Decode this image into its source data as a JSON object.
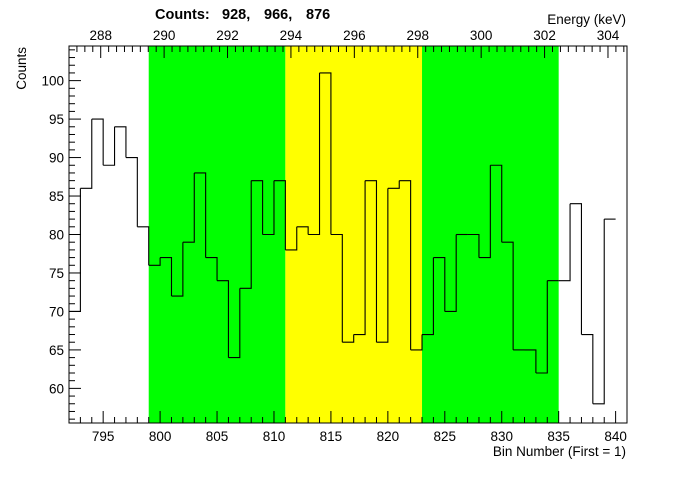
{
  "chart_data": {
    "type": "histogram",
    "counts_label": "Counts:",
    "counts_values": [
      "928,",
      "966,",
      "876"
    ],
    "ylabel": "Counts",
    "xlabel_bottom": "Bin Number (First = 1)",
    "xlabel_top": "Energy (keV)",
    "xlim": [
      792,
      841
    ],
    "ylim": [
      55.5,
      104.5
    ],
    "energy_range": [
      287.0,
      304.6
    ],
    "bottom_ticks": [
      "795",
      "800",
      "805",
      "810",
      "815",
      "820",
      "825",
      "830",
      "835",
      "840"
    ],
    "top_ticks": [
      "288",
      "290",
      "292",
      "294",
      "296",
      "298",
      "300",
      "302",
      "304"
    ],
    "y_ticks": [
      "60",
      "65",
      "70",
      "75",
      "80",
      "85",
      "90",
      "95",
      "100"
    ],
    "regions": [
      {
        "name": "background-left",
        "from": 799,
        "to": 811,
        "color": "#00ff00"
      },
      {
        "name": "peak",
        "from": 811,
        "to": 823,
        "color": "#ffff00"
      },
      {
        "name": "background-right",
        "from": 823,
        "to": 835,
        "color": "#00ff00"
      }
    ],
    "bins_start": 792,
    "bin_width": 1,
    "values": [
      70,
      86,
      95,
      89,
      94,
      90,
      81,
      76,
      77,
      72,
      79,
      88,
      77,
      74,
      64,
      73,
      87,
      80,
      87,
      78,
      81,
      80,
      101,
      80,
      66,
      67,
      87,
      66,
      86,
      87,
      65,
      67,
      77,
      70,
      80,
      80,
      77,
      89,
      79,
      65,
      65,
      62,
      74,
      74,
      84,
      67,
      58,
      82
    ]
  }
}
